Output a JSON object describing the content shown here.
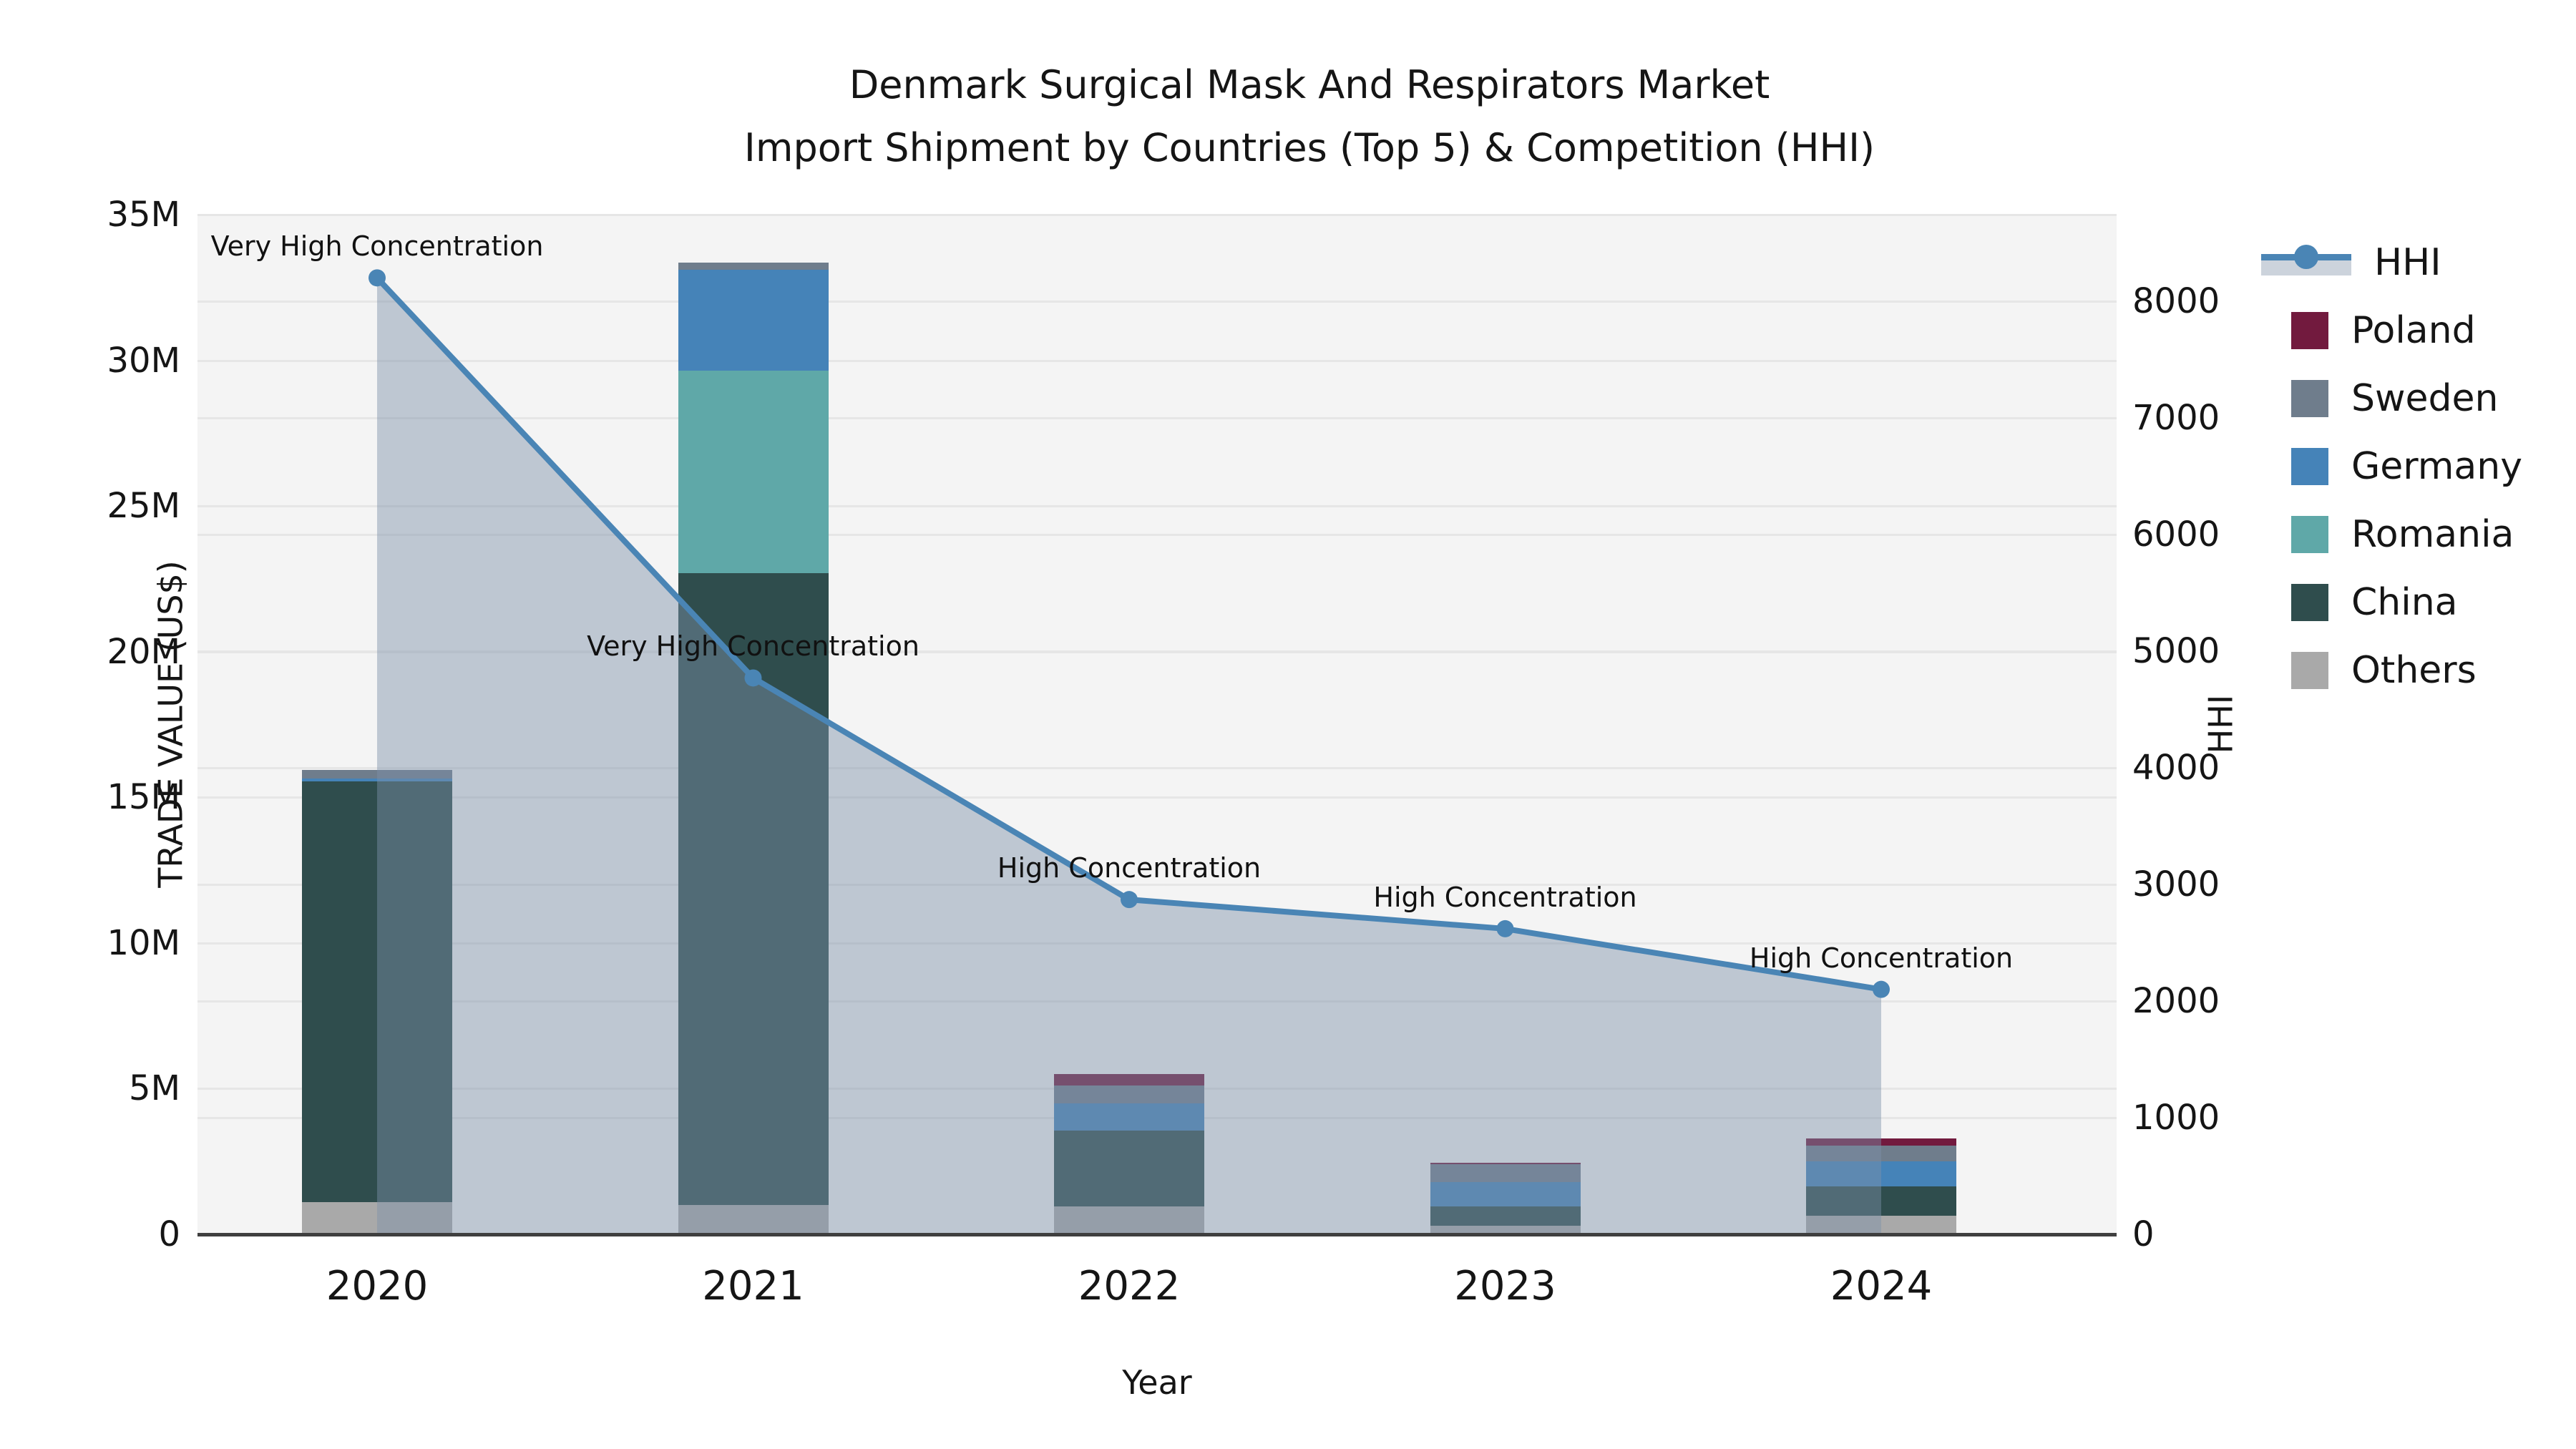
{
  "title": {
    "line1": "Denmark Surgical Mask And Respirators Market",
    "line2": "Import Shipment by Countries (Top 5) & Competition (HHI)"
  },
  "axes": {
    "x": {
      "label": "Year",
      "ticks": [
        "2020",
        "2021",
        "2022",
        "2023",
        "2024"
      ]
    },
    "y_left": {
      "label": "TRADE VALUE (US$)",
      "ticks": [
        "0",
        "5M",
        "10M",
        "15M",
        "20M",
        "25M",
        "30M",
        "35M"
      ]
    },
    "y_right": {
      "label": "HHI",
      "ticks": [
        "0",
        "1000",
        "2000",
        "3000",
        "4000",
        "5000",
        "6000",
        "7000",
        "8000"
      ]
    }
  },
  "legend": {
    "items": [
      {
        "label": "HHI",
        "type": "line",
        "color": "#4a85b5"
      },
      {
        "label": "Poland",
        "type": "swatch",
        "color": "#721a3e"
      },
      {
        "label": "Sweden",
        "type": "swatch",
        "color": "#6f7d8c"
      },
      {
        "label": "Germany",
        "type": "swatch",
        "color": "#4583b8"
      },
      {
        "label": "Romania",
        "type": "swatch",
        "color": "#5fa8a8"
      },
      {
        "label": "China",
        "type": "swatch",
        "color": "#2f4d4d"
      },
      {
        "label": "Others",
        "type": "swatch",
        "color": "#a9a9a9"
      }
    ]
  },
  "colors": {
    "plot_background": "#f4f4f4",
    "gridline": "#e6e6e6",
    "axis_line": "#3f3f3f",
    "hhi_line": "#4a85b5",
    "hhi_area_fill": "rgba(125,145,168,0.45)"
  },
  "chart_data": {
    "type": [
      "bar",
      "line"
    ],
    "title": "Denmark Surgical Mask And Respirators Market — Import Shipment by Countries (Top 5) & Competition (HHI)",
    "categories": [
      "2020",
      "2021",
      "2022",
      "2023",
      "2024"
    ],
    "bar_unit": "million US$",
    "bar_stack_order_bottom_to_top": [
      "Others",
      "China",
      "Romania",
      "Germany",
      "Sweden",
      "Poland"
    ],
    "series": [
      {
        "name": "Others",
        "color": "#a9a9a9",
        "values_musd": [
          1.1,
          1.0,
          0.95,
          0.3,
          0.65
        ]
      },
      {
        "name": "China",
        "color": "#2f4d4d",
        "values_musd": [
          14.45,
          21.7,
          2.6,
          0.65,
          1.0
        ]
      },
      {
        "name": "Romania",
        "color": "#5fa8a8",
        "values_musd": [
          0,
          6.95,
          0,
          0,
          0
        ]
      },
      {
        "name": "Germany",
        "color": "#4583b8",
        "values_musd": [
          0.1,
          3.45,
          0.95,
          0.85,
          0.85
        ]
      },
      {
        "name": "Sweden",
        "color": "#6f7d8c",
        "values_musd": [
          0.3,
          0.25,
          0.6,
          0.6,
          0.55
        ]
      },
      {
        "name": "Poland",
        "color": "#721a3e",
        "values_musd": [
          0,
          0,
          0.4,
          0.05,
          0.25
        ]
      }
    ],
    "bar_totals_musd": [
      15.95,
      33.35,
      5.5,
      2.45,
      3.3
    ],
    "line_series": {
      "name": "HHI",
      "color": "#4a85b5",
      "area": true,
      "values": [
        8200,
        4770,
        2870,
        2620,
        2100
      ]
    },
    "annotations": [
      {
        "category": "2020",
        "text": "Very High Concentration"
      },
      {
        "category": "2021",
        "text": "Very High Concentration"
      },
      {
        "category": "2022",
        "text": "High Concentration"
      },
      {
        "category": "2023",
        "text": "High Concentration"
      },
      {
        "category": "2024",
        "text": "High Concentration"
      }
    ],
    "xlabel": "Year",
    "ylabel_left": "TRADE VALUE (US$)",
    "ylabel_right": "HHI",
    "ylim_left_musd": [
      0,
      35
    ],
    "ylim_right_hhi": [
      0,
      8742
    ],
    "grid": true,
    "legend_position": "right"
  }
}
